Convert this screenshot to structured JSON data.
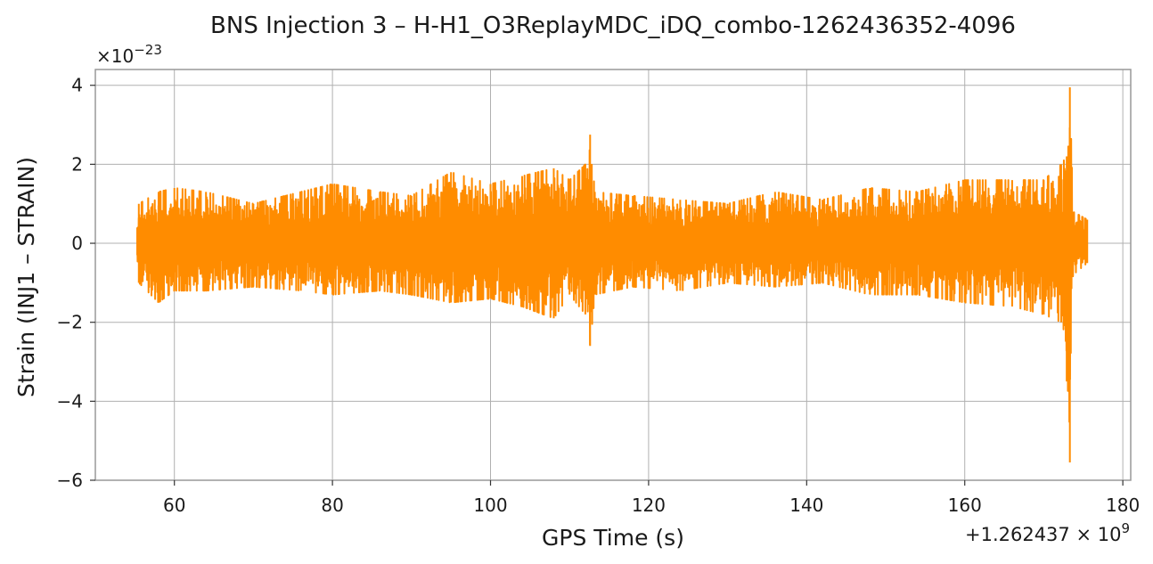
{
  "chart_data": {
    "type": "line",
    "title": "BNS Injection 3 – H-H1_O3ReplayMDC_iDQ_combo-1262436352-4096",
    "xlabel": "GPS Time (s)",
    "ylabel": "Strain (INJ1 – STRAIN)",
    "x_offset_label": "+1.262437 × 10",
    "x_offset_exponent": "9",
    "y_scale_label": "×10",
    "y_scale_exponent": "−23",
    "xlim": [
      50,
      181
    ],
    "ylim": [
      -6,
      4.4
    ],
    "x_ticks": [
      60,
      80,
      100,
      120,
      140,
      160,
      180
    ],
    "x_tick_labels": [
      "60",
      "80",
      "100",
      "120",
      "140",
      "160",
      "180"
    ],
    "y_ticks": [
      -6,
      -4,
      -2,
      0,
      2,
      4
    ],
    "y_tick_labels": [
      "−6",
      "−4",
      "−2",
      "0",
      "2",
      "4"
    ],
    "grid": true,
    "series": [
      {
        "color": "#ff8c00",
        "x_range": [
          55.3,
          175.5
        ],
        "envelope": [
          {
            "x": 55.3,
            "min": -0.3,
            "max": 0.4
          },
          {
            "x": 55.5,
            "min": -1.0,
            "max": 1.0
          },
          {
            "x": 58,
            "min": -1.5,
            "max": 1.3
          },
          {
            "x": 60,
            "min": -1.2,
            "max": 1.4
          },
          {
            "x": 64,
            "min": -1.2,
            "max": 1.3
          },
          {
            "x": 70,
            "min": -1.1,
            "max": 1.0
          },
          {
            "x": 76,
            "min": -1.2,
            "max": 1.3
          },
          {
            "x": 80,
            "min": -1.3,
            "max": 1.5
          },
          {
            "x": 86,
            "min": -1.2,
            "max": 1.3
          },
          {
            "x": 90,
            "min": -1.3,
            "max": 1.2
          },
          {
            "x": 95,
            "min": -1.5,
            "max": 1.8
          },
          {
            "x": 100,
            "min": -1.4,
            "max": 1.5
          },
          {
            "x": 104,
            "min": -1.6,
            "max": 1.7
          },
          {
            "x": 108,
            "min": -1.9,
            "max": 1.9
          },
          {
            "x": 110,
            "min": -1.3,
            "max": 1.6
          },
          {
            "x": 112,
            "min": -1.8,
            "max": 2.0
          },
          {
            "x": 112.6,
            "min": -2.6,
            "max": 2.75
          },
          {
            "x": 113.2,
            "min": -1.3,
            "max": 1.3
          },
          {
            "x": 118,
            "min": -1.1,
            "max": 1.2
          },
          {
            "x": 124,
            "min": -1.2,
            "max": 1.1
          },
          {
            "x": 130,
            "min": -1.0,
            "max": 1.0
          },
          {
            "x": 136,
            "min": -1.1,
            "max": 1.3
          },
          {
            "x": 142,
            "min": -1.0,
            "max": 1.1
          },
          {
            "x": 148,
            "min": -1.3,
            "max": 1.4
          },
          {
            "x": 154,
            "min": -1.3,
            "max": 1.3
          },
          {
            "x": 160,
            "min": -1.5,
            "max": 1.6
          },
          {
            "x": 166,
            "min": -1.6,
            "max": 1.6
          },
          {
            "x": 170,
            "min": -1.8,
            "max": 1.6
          },
          {
            "x": 172.2,
            "min": -2.0,
            "max": 2.0
          },
          {
            "x": 172.9,
            "min": -3.5,
            "max": 2.2
          },
          {
            "x": 173.3,
            "min": -5.55,
            "max": 3.95
          },
          {
            "x": 173.7,
            "min": -0.8,
            "max": 0.8
          },
          {
            "x": 175.5,
            "min": -0.5,
            "max": 0.6
          }
        ]
      }
    ]
  }
}
